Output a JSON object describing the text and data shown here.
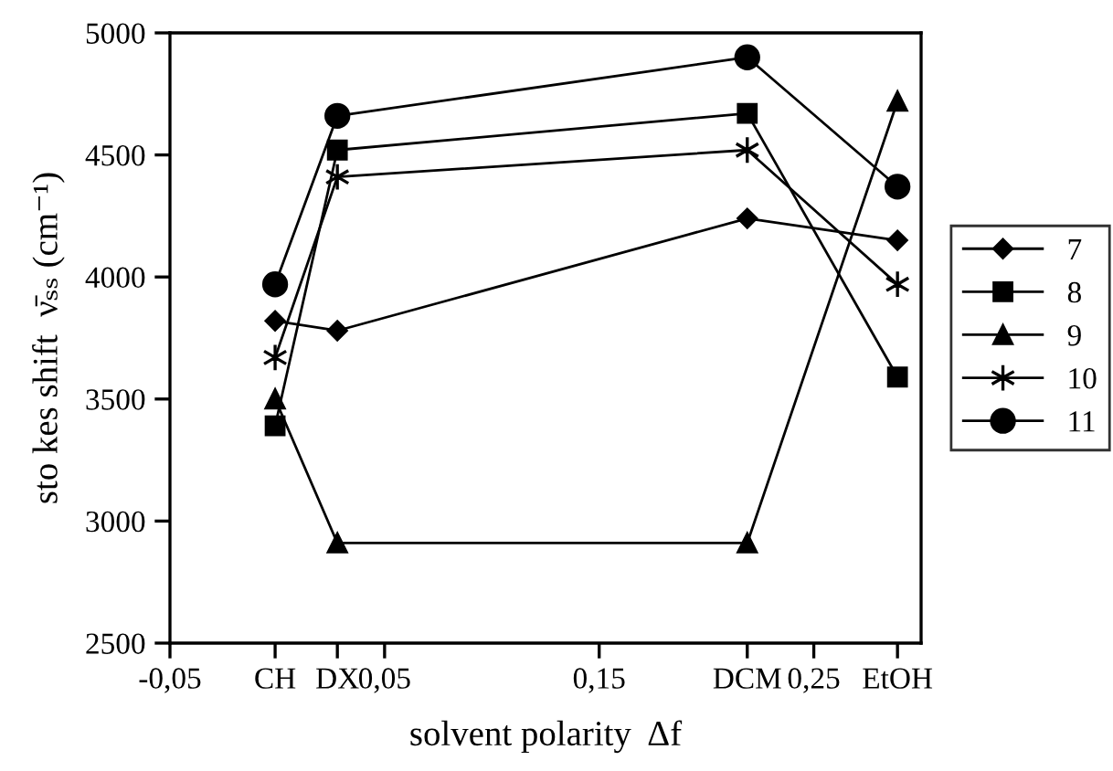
{
  "chart_data": {
    "type": "line",
    "xlabel": "solvent polarity  Δf",
    "ylabel": "sto kes shift  ν̄ₛₛ (cm⁻¹)",
    "x": [
      -0.001,
      0.028,
      0.219,
      0.289
    ],
    "xlim": [
      -0.05,
      0.3
    ],
    "xticks": [
      {
        "value": -0.05,
        "label": "-0,05"
      },
      {
        "value": -0.001,
        "label": "CH"
      },
      {
        "value": 0.028,
        "label": "DX"
      },
      {
        "value": 0.05,
        "label": "0,05"
      },
      {
        "value": 0.15,
        "label": "0,15"
      },
      {
        "value": 0.219,
        "label": "DCM"
      },
      {
        "value": 0.25,
        "label": "0,25"
      },
      {
        "value": 0.289,
        "label": "EtOH"
      }
    ],
    "ylim": [
      2500,
      5000
    ],
    "yticks": [
      2500,
      3000,
      3500,
      4000,
      4500,
      5000
    ],
    "grid": false,
    "legend": "right",
    "line_style": "solid",
    "series": [
      {
        "name": "7",
        "color": "#000000",
        "marker": "diamond",
        "values": [
          3820,
          3780,
          4240,
          4150
        ]
      },
      {
        "name": "8",
        "color": "#000000",
        "marker": "square",
        "values": [
          3390,
          4520,
          4670,
          3590
        ]
      },
      {
        "name": "9",
        "color": "#000000",
        "marker": "triangle",
        "values": [
          3500,
          2910,
          2910,
          4720
        ]
      },
      {
        "name": "10",
        "color": "#000000",
        "marker": "cross",
        "values": [
          3670,
          4410,
          4520,
          3970
        ]
      },
      {
        "name": "11",
        "color": "#000000",
        "marker": "circle",
        "values": [
          3970,
          4660,
          4900,
          4370
        ]
      }
    ]
  }
}
